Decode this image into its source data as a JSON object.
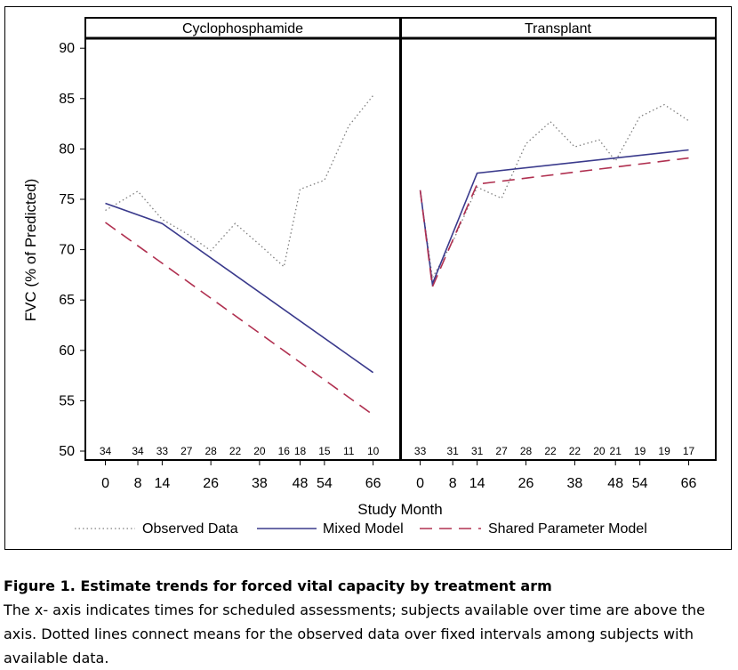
{
  "chart_data": {
    "type": "line",
    "xlabel": "Study Month",
    "ylabel": "FVC (% of Predicted)",
    "ylim": [
      50,
      90
    ],
    "yticks": [
      50,
      55,
      60,
      65,
      70,
      75,
      80,
      85,
      90
    ],
    "xticks": [
      0,
      8,
      14,
      26,
      38,
      48,
      54,
      66
    ],
    "xlim": [
      -4.5,
      72
    ],
    "legend": {
      "position": "bottom",
      "entries": [
        {
          "name": "Observed Data",
          "style": "dotted",
          "color": "#7f7f7f"
        },
        {
          "name": "Mixed Model",
          "style": "solid",
          "color": "#3a3a8c"
        },
        {
          "name": "Shared Parameter Model",
          "style": "dashed",
          "color": "#b03050"
        }
      ]
    },
    "panels": [
      {
        "title": "Cyclophosphamide",
        "at_risk": [
          {
            "x": 0,
            "n": "34"
          },
          {
            "x": 8,
            "n": "34"
          },
          {
            "x": 14,
            "n": "33"
          },
          {
            "x": 20,
            "n": "27"
          },
          {
            "x": 26,
            "n": "28"
          },
          {
            "x": 32,
            "n": "22"
          },
          {
            "x": 38,
            "n": "20"
          },
          {
            "x": 44,
            "n": "16"
          },
          {
            "x": 48,
            "n": "18"
          },
          {
            "x": 54,
            "n": "15"
          },
          {
            "x": 60,
            "n": "11"
          },
          {
            "x": 66,
            "n": "10"
          }
        ],
        "series": [
          {
            "name": "Observed Data",
            "x": [
              0,
              8,
              14,
              20,
              26,
              32,
              38,
              44,
              48,
              54,
              60,
              66
            ],
            "y": [
              73.9,
              75.8,
              73.0,
              71.6,
              69.9,
              72.6,
              70.5,
              68.3,
              76.0,
              76.9,
              82.3,
              85.3
            ]
          },
          {
            "name": "Mixed Model",
            "x": [
              0,
              14,
              66
            ],
            "y": [
              74.6,
              72.6,
              57.8
            ]
          },
          {
            "name": "Shared Parameter Model",
            "x": [
              0,
              66
            ],
            "y": [
              72.7,
              53.6
            ]
          }
        ]
      },
      {
        "title": "Transplant",
        "at_risk": [
          {
            "x": 0,
            "n": "33"
          },
          {
            "x": 8,
            "n": "31"
          },
          {
            "x": 14,
            "n": "31"
          },
          {
            "x": 20,
            "n": "27"
          },
          {
            "x": 26,
            "n": "28"
          },
          {
            "x": 32,
            "n": "22"
          },
          {
            "x": 38,
            "n": "22"
          },
          {
            "x": 44,
            "n": "20"
          },
          {
            "x": 48,
            "n": "21"
          },
          {
            "x": 54,
            "n": "19"
          },
          {
            "x": 60,
            "n": "19"
          },
          {
            "x": 66,
            "n": "17"
          }
        ],
        "series": [
          {
            "name": "Observed Data",
            "x": [
              0,
              3,
              8,
              14,
              20,
              26,
              32,
              38,
              44,
              48,
              54,
              60,
              66
            ],
            "y": [
              75.8,
              67.2,
              70.8,
              76.2,
              75.1,
              80.5,
              82.7,
              80.2,
              80.9,
              78.8,
              83.2,
              84.4,
              82.8
            ]
          },
          {
            "name": "Mixed Model",
            "x": [
              0,
              3,
              14,
              66
            ],
            "y": [
              75.9,
              66.6,
              77.6,
              79.9
            ]
          },
          {
            "name": "Shared Parameter Model",
            "x": [
              0,
              3,
              14,
              66
            ],
            "y": [
              75.9,
              66.3,
              76.5,
              79.1
            ]
          }
        ]
      }
    ]
  },
  "caption": {
    "title": "Figure 1. Estimate trends for forced vital capacity by treatment arm",
    "text": "The x- axis indicates times for scheduled assessments; subjects available over time are above the axis. Dotted lines connect means for the observed data over fixed intervals among subjects with available data."
  }
}
